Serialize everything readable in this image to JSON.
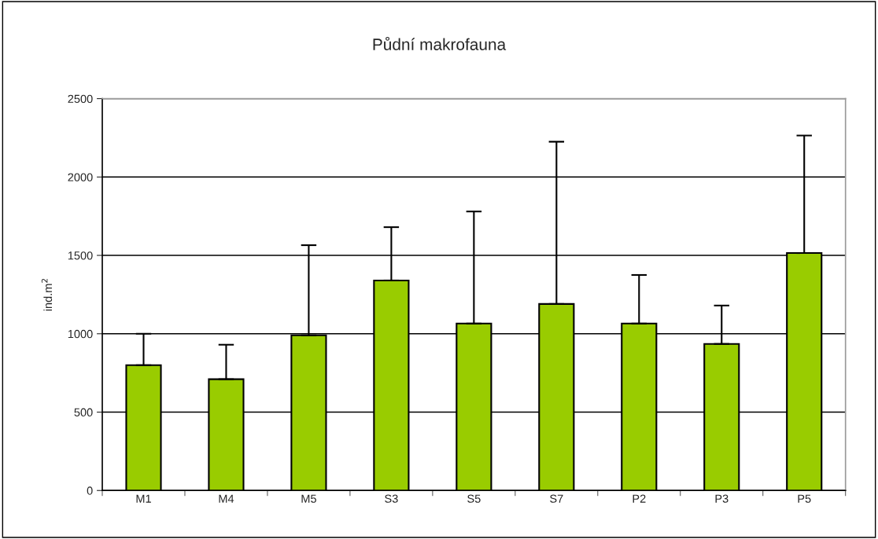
{
  "chart_data": {
    "type": "bar",
    "title": "Půdní makrofauna",
    "ylabel": "ind.m$^{2}$",
    "categories": [
      "M1",
      "M4",
      "M5",
      "S3",
      "S5",
      "S7",
      "P2",
      "P3",
      "P5"
    ],
    "values": [
      800,
      710,
      990,
      1340,
      1065,
      1190,
      1065,
      935,
      1515
    ],
    "errors": [
      [
        800,
        1000
      ],
      [
        710,
        930
      ],
      [
        990,
        1565
      ],
      [
        1340,
        1680
      ],
      [
        1065,
        1780
      ],
      [
        1190,
        2225
      ],
      [
        1065,
        1375
      ],
      [
        935,
        1180
      ],
      [
        1515,
        2265
      ]
    ],
    "color": "#99cc00",
    "ylim": [
      0,
      2500
    ],
    "yticks": [
      0,
      500,
      1000,
      1500,
      2000,
      2500
    ],
    "grid": "y",
    "legend": false
  }
}
